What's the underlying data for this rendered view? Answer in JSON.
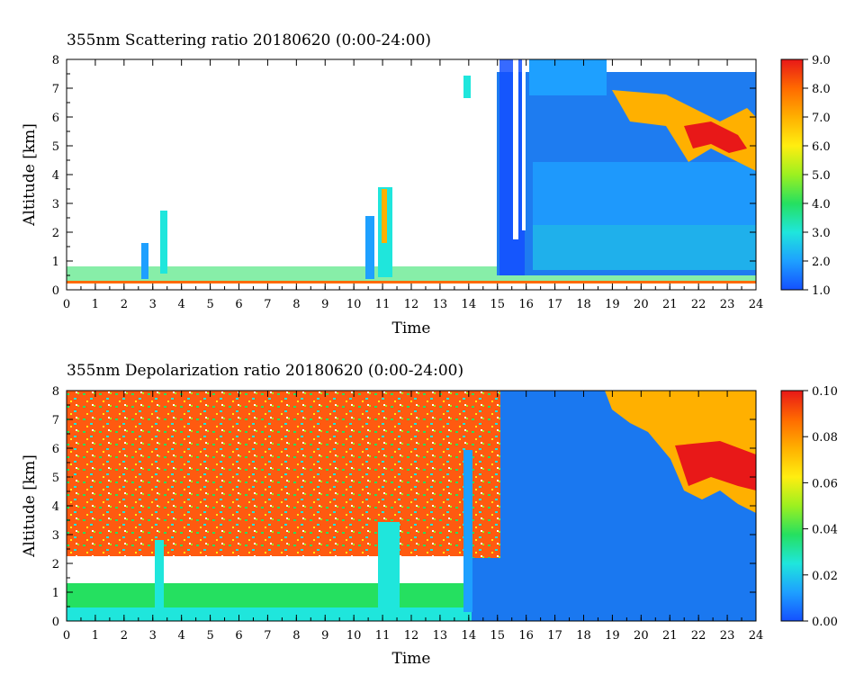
{
  "chart_data": [
    {
      "type": "heatmap",
      "title": "355nm Scattering ratio  20180620 (0:00-24:00)",
      "xlabel": "Time",
      "ylabel": "Altitude [km]",
      "xlim": [
        0,
        24
      ],
      "ylim": [
        0,
        8
      ],
      "x_ticks": [
        "0",
        "1",
        "2",
        "3",
        "4",
        "5",
        "6",
        "7",
        "8",
        "9",
        "10",
        "11",
        "12",
        "13",
        "14",
        "15",
        "16",
        "17",
        "18",
        "19",
        "20",
        "21",
        "22",
        "23",
        "24"
      ],
      "y_ticks": [
        "0",
        "1",
        "2",
        "3",
        "4",
        "5",
        "6",
        "7",
        "8"
      ],
      "colorbar": {
        "range": [
          1.0,
          9.0
        ],
        "ticks": [
          "1.0",
          "2.0",
          "3.0",
          "4.0",
          "5.0",
          "6.0",
          "7.0",
          "8.0",
          "9.0"
        ],
        "colors": [
          "#1450ff",
          "#1ea0ff",
          "#1fe6dc",
          "#25e060",
          "#9cf020",
          "#ffee10",
          "#ffb000",
          "#ff6a00",
          "#e81818"
        ]
      },
      "features": [
        {
          "t_start": 0,
          "t_end": 24,
          "alt_km": 0.2,
          "description": "low boundary layer"
        },
        {
          "t_start": 14.8,
          "t_end": 24,
          "alt_km_range": [
            0.5,
            8
          ],
          "value": 2.0
        },
        {
          "t_start": 19,
          "t_end": 24,
          "alt_km_range": [
            4,
            7.5
          ],
          "value": 7.0
        }
      ]
    },
    {
      "type": "heatmap",
      "title": "355nm Depolarization ratio  20180620 (0:00-24:00)",
      "xlabel": "Time",
      "ylabel": "Altitude [km]",
      "xlim": [
        0,
        24
      ],
      "ylim": [
        0,
        8
      ],
      "x_ticks": [
        "0",
        "1",
        "2",
        "3",
        "4",
        "5",
        "6",
        "7",
        "8",
        "9",
        "10",
        "11",
        "12",
        "13",
        "14",
        "15",
        "16",
        "17",
        "18",
        "19",
        "20",
        "21",
        "22",
        "23",
        "24"
      ],
      "y_ticks": [
        "0",
        "1",
        "2",
        "3",
        "4",
        "5",
        "6",
        "7",
        "8"
      ],
      "colorbar": {
        "range": [
          0.0,
          0.1
        ],
        "ticks": [
          "0.00",
          "0.02",
          "0.04",
          "0.06",
          "0.08",
          "0.10"
        ],
        "colors": [
          "#1450ff",
          "#1ea0ff",
          "#1fe6dc",
          "#25e060",
          "#9cf020",
          "#ffee10",
          "#ffb000",
          "#ff6a00",
          "#e81818"
        ]
      },
      "features": [
        {
          "t_start": 0,
          "t_end": 15,
          "alt_km_range": [
            1.5,
            8
          ],
          "value": 0.1,
          "description": "noisy high values"
        },
        {
          "t_start": 15,
          "t_end": 24,
          "alt_km_range": [
            0,
            8
          ],
          "value": 0.01
        },
        {
          "t_start": 19,
          "t_end": 24,
          "alt_km_range": [
            4,
            7.5
          ],
          "value": 0.09
        }
      ]
    }
  ]
}
